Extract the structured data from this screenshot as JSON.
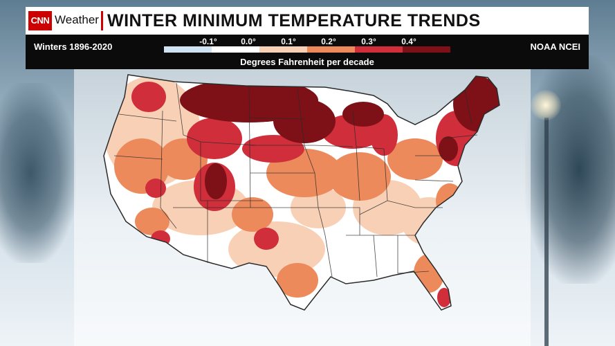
{
  "header": {
    "brand": "Weather",
    "logo_text": "CNN",
    "title": "WINTER MINIMUM TEMPERATURE TRENDS"
  },
  "info": {
    "period": "Winters 1896-2020",
    "source": "NOAA NCEI",
    "unit_label": "Degrees Fahrenheit per decade"
  },
  "legend": {
    "ticks": [
      "-0.1°",
      "0.0°",
      "0.1°",
      "0.2°",
      "0.3°",
      "0.4°"
    ],
    "colors": [
      "#cfe3f3",
      "#ffffff",
      "#f8d0b6",
      "#ec8a5c",
      "#cf2e3a",
      "#7d1117"
    ]
  },
  "colors": {
    "brand_red": "#cc0000",
    "map_background": "#ffffff",
    "state_lines": "#2a2a2a"
  }
}
